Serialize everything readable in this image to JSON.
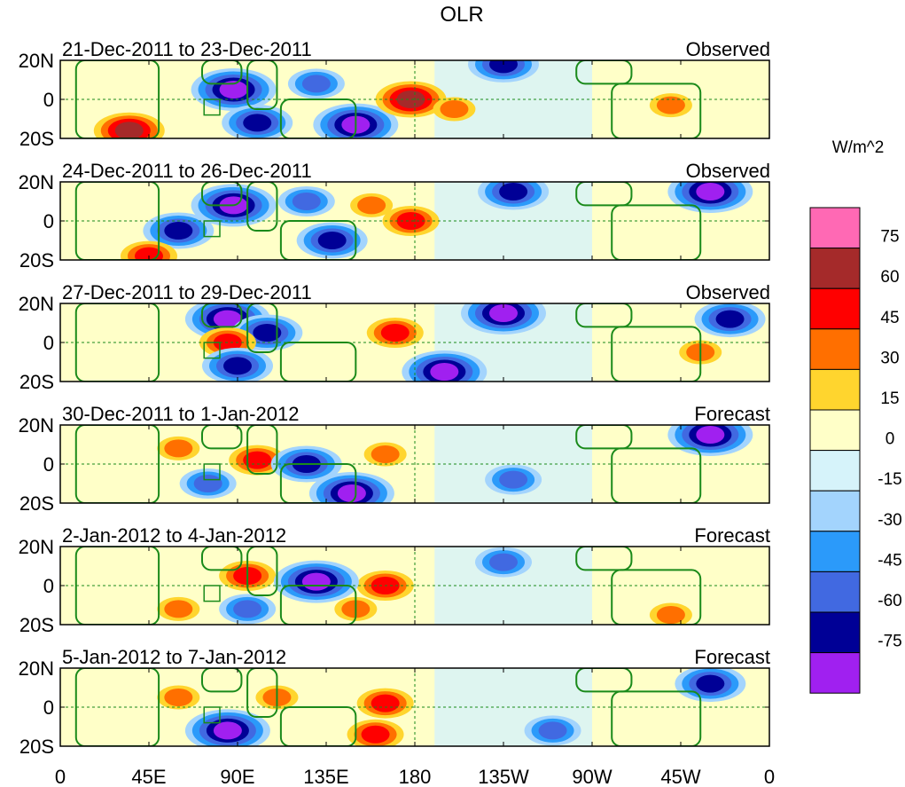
{
  "chart_data": {
    "type": "heatmap",
    "title": "OLR",
    "units_label": "W/m^2",
    "x_ticks": [
      "0",
      "45E",
      "90E",
      "135E",
      "180",
      "135W",
      "90W",
      "45W",
      "0"
    ],
    "x_tick_degrees": [
      0,
      45,
      90,
      135,
      180,
      225,
      270,
      315,
      360
    ],
    "y_ticks": [
      "20N",
      "0",
      "20S"
    ],
    "y_tick_degrees": [
      20,
      0,
      -20
    ],
    "lon_range": [
      0,
      360
    ],
    "lat_range": [
      -20,
      20
    ],
    "colorbar": {
      "levels": [
        "75",
        "60",
        "45",
        "30",
        "15",
        "0",
        "-15",
        "-30",
        "-45",
        "-60",
        "-75"
      ],
      "colors": [
        "#ff69b4",
        "#a52a2a",
        "#ff0000",
        "#ff6f00",
        "#ffd52e",
        "#ffffc8",
        "#d6f3fa",
        "#a3d4fd",
        "#2b9afa",
        "#4169e1",
        "#000096",
        "#a020f0"
      ]
    },
    "panels": [
      {
        "date_range": "21-Dec-2011 to 23-Dec-2011",
        "kind": "Observed",
        "anomalies": [
          {
            "lon": 88,
            "lat": 5,
            "value": -75
          },
          {
            "lon": 100,
            "lat": -12,
            "value": -60
          },
          {
            "lon": 150,
            "lat": -13,
            "value": -75
          },
          {
            "lon": 130,
            "lat": 8,
            "value": -45
          },
          {
            "lon": 178,
            "lat": 0,
            "value": 60
          },
          {
            "lon": 200,
            "lat": -5,
            "value": 30
          },
          {
            "lon": 35,
            "lat": -16,
            "value": 60
          },
          {
            "lon": 225,
            "lat": 18,
            "value": -60
          },
          {
            "lon": 310,
            "lat": -3,
            "value": 30
          }
        ]
      },
      {
        "date_range": "24-Dec-2011 to 26-Dec-2011",
        "kind": "Observed",
        "anomalies": [
          {
            "lon": 88,
            "lat": 8,
            "value": -75
          },
          {
            "lon": 125,
            "lat": 10,
            "value": -45
          },
          {
            "lon": 138,
            "lat": -10,
            "value": -60
          },
          {
            "lon": 178,
            "lat": 0,
            "value": 45
          },
          {
            "lon": 158,
            "lat": 8,
            "value": 30
          },
          {
            "lon": 230,
            "lat": 15,
            "value": -60
          },
          {
            "lon": 330,
            "lat": 15,
            "value": -75
          },
          {
            "lon": 60,
            "lat": -5,
            "value": -60
          },
          {
            "lon": 45,
            "lat": -18,
            "value": 45
          }
        ]
      },
      {
        "date_range": "27-Dec-2011 to 29-Dec-2011",
        "kind": "Observed",
        "anomalies": [
          {
            "lon": 85,
            "lat": 12,
            "value": -75
          },
          {
            "lon": 105,
            "lat": 5,
            "value": -60
          },
          {
            "lon": 170,
            "lat": 5,
            "value": 45
          },
          {
            "lon": 85,
            "lat": 0,
            "value": 45
          },
          {
            "lon": 225,
            "lat": 15,
            "value": -75
          },
          {
            "lon": 195,
            "lat": -15,
            "value": -75
          },
          {
            "lon": 90,
            "lat": -12,
            "value": -60
          },
          {
            "lon": 340,
            "lat": 12,
            "value": -60
          },
          {
            "lon": 325,
            "lat": -5,
            "value": 30
          }
        ]
      },
      {
        "date_range": "30-Dec-2011 to 1-Jan-2012",
        "kind": "Forecast",
        "anomalies": [
          {
            "lon": 100,
            "lat": 2,
            "value": 45
          },
          {
            "lon": 148,
            "lat": -15,
            "value": -75
          },
          {
            "lon": 125,
            "lat": 0,
            "value": -60
          },
          {
            "lon": 165,
            "lat": 5,
            "value": 30
          },
          {
            "lon": 60,
            "lat": 8,
            "value": 30
          },
          {
            "lon": 330,
            "lat": 15,
            "value": -75
          },
          {
            "lon": 230,
            "lat": -8,
            "value": -45
          },
          {
            "lon": 75,
            "lat": -10,
            "value": -45
          }
        ]
      },
      {
        "date_range": "2-Jan-2012 to 4-Jan-2012",
        "kind": "Forecast",
        "anomalies": [
          {
            "lon": 95,
            "lat": 5,
            "value": 45
          },
          {
            "lon": 165,
            "lat": 0,
            "value": 45
          },
          {
            "lon": 130,
            "lat": 2,
            "value": -75
          },
          {
            "lon": 60,
            "lat": -12,
            "value": 30
          },
          {
            "lon": 150,
            "lat": -12,
            "value": 30
          },
          {
            "lon": 225,
            "lat": 12,
            "value": -45
          },
          {
            "lon": 310,
            "lat": -15,
            "value": 30
          },
          {
            "lon": 95,
            "lat": -12,
            "value": -45
          }
        ]
      },
      {
        "date_range": "5-Jan-2012 to 7-Jan-2012",
        "kind": "Forecast",
        "anomalies": [
          {
            "lon": 110,
            "lat": 5,
            "value": 30
          },
          {
            "lon": 165,
            "lat": 2,
            "value": 45
          },
          {
            "lon": 85,
            "lat": -12,
            "value": -75
          },
          {
            "lon": 160,
            "lat": -14,
            "value": 45
          },
          {
            "lon": 330,
            "lat": 12,
            "value": -60
          },
          {
            "lon": 250,
            "lat": -12,
            "value": -45
          },
          {
            "lon": 60,
            "lat": 5,
            "value": 30
          }
        ]
      }
    ]
  }
}
